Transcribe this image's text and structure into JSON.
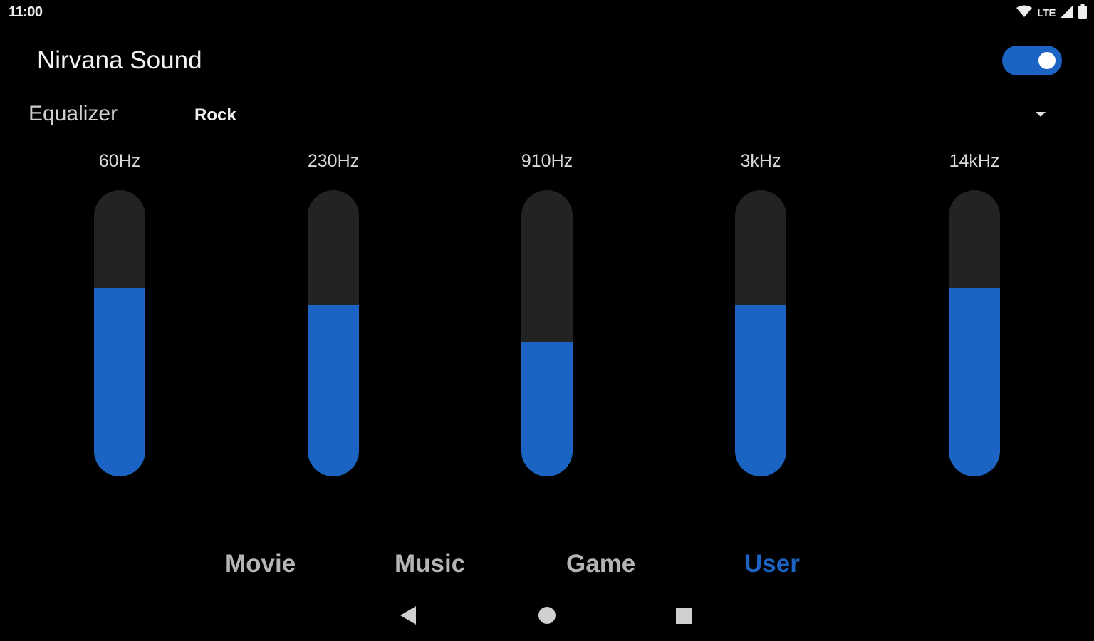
{
  "status_bar": {
    "time": "11:00",
    "network": "LTE",
    "icons": [
      "wifi-icon",
      "signal-icon",
      "battery-icon"
    ]
  },
  "header": {
    "title": "Nirvana Sound",
    "enabled": true
  },
  "equalizer": {
    "label": "Equalizer",
    "preset": "Rock",
    "bands": [
      {
        "label": "60Hz",
        "level": 0.66
      },
      {
        "label": "230Hz",
        "level": 0.6
      },
      {
        "label": "910Hz",
        "level": 0.47
      },
      {
        "label": "3kHz",
        "level": 0.6
      },
      {
        "label": "14kHz",
        "level": 0.66
      }
    ]
  },
  "tabs": [
    {
      "label": "Movie",
      "active": false
    },
    {
      "label": "Music",
      "active": false
    },
    {
      "label": "Game",
      "active": false
    },
    {
      "label": "User",
      "active": true
    }
  ],
  "nav": {
    "icons": [
      "back-icon",
      "home-icon",
      "recents-icon"
    ]
  },
  "colors": {
    "accent": "#1b64c4",
    "background": "#000000",
    "track": "#232323",
    "tab_inactive": "#b5b5b5"
  }
}
